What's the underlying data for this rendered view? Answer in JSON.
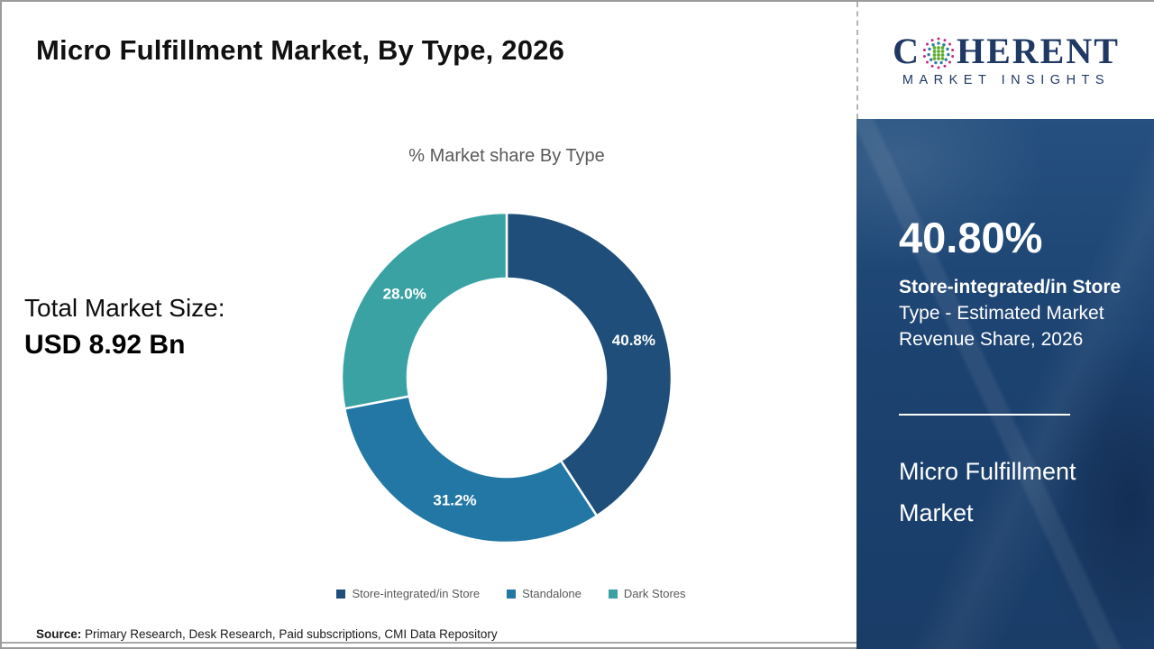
{
  "header": {
    "title": "Micro Fulfillment Market, By Type, 2026"
  },
  "logo": {
    "brand_left": "C",
    "brand_right": "HERENT",
    "tagline": "MARKET INSIGHTS",
    "brand_color": "#1f3864"
  },
  "chart_data": {
    "type": "pie",
    "donut": true,
    "title": "% Market share By Type",
    "unit": "%",
    "start_angle_deg": 0,
    "direction": "clockwise",
    "legend_position": "bottom",
    "series": [
      {
        "name": "Store-integrated/in Store",
        "value": 40.8,
        "label": "40.8%",
        "color": "#1e4e79"
      },
      {
        "name": "Standalone",
        "value": 31.2,
        "label": "31.2%",
        "color": "#2277a5"
      },
      {
        "name": "Dark Stores",
        "value": 28.0,
        "label": "28.0%",
        "color": "#3ba2a4"
      }
    ]
  },
  "left_panel": {
    "total_label": "Total Market Size:",
    "total_value": "USD 8.92 Bn"
  },
  "sidebar": {
    "stat_value": "40.80%",
    "stat_title": "Store-integrated/in Store",
    "stat_desc": " Type - Estimated Market Revenue Share, 2026",
    "market_name": "Micro Fulfillment Market",
    "panel_color": "#1c4270"
  },
  "footer": {
    "source_label": "Source:",
    "source_text": " Primary Research, Desk Research, Paid subscriptions, CMI Data Repository"
  }
}
